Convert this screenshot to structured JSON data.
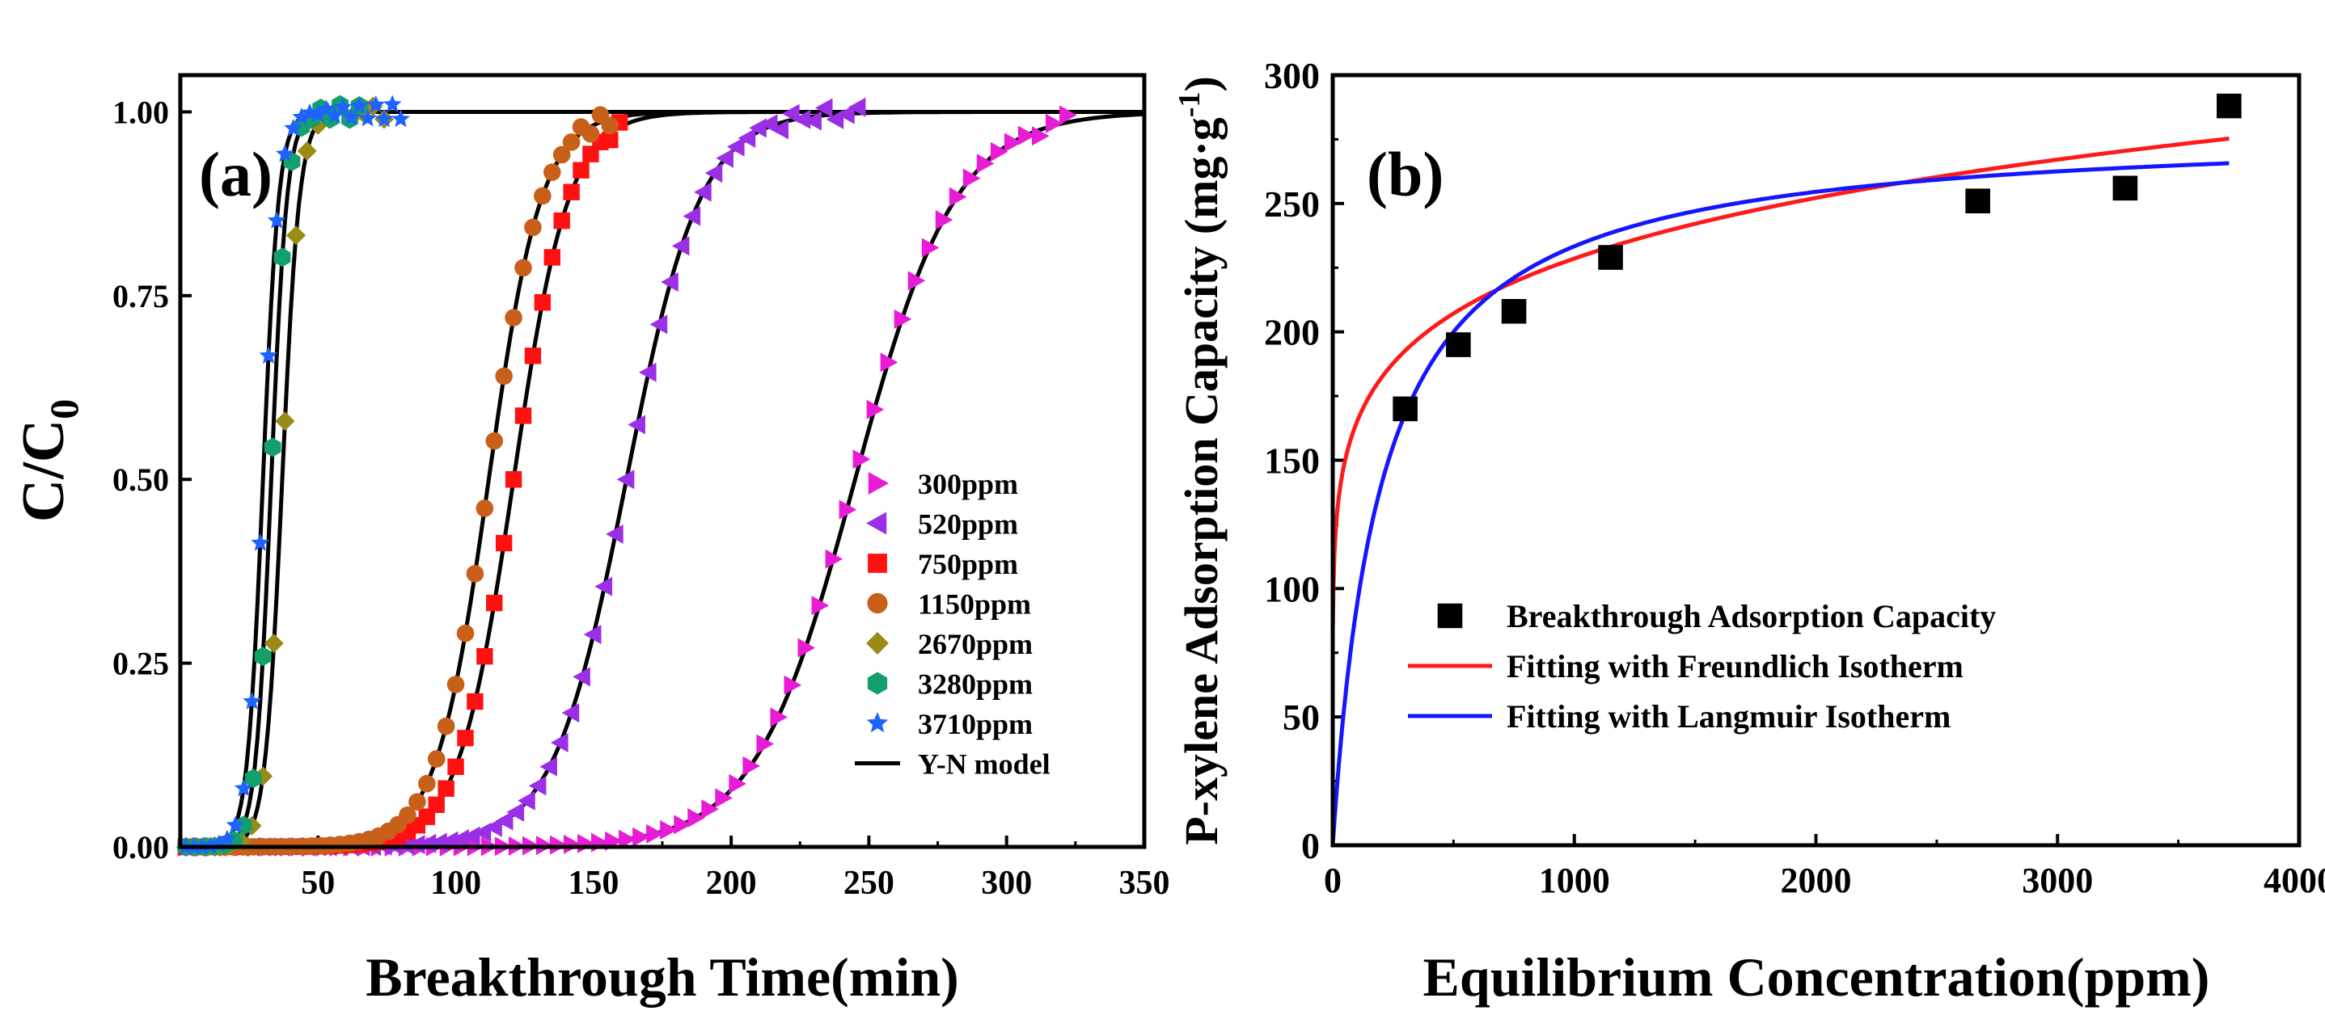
{
  "chart_data": [
    {
      "id": "a",
      "type": "scatter",
      "panel_label": "(a)",
      "xlabel": "Breakthrough Time(min)",
      "ylabel_main": "C/C",
      "ylabel_sub": "0",
      "xlim": [
        0,
        350
      ],
      "ylim": [
        0,
        1.05
      ],
      "xticks": [
        50,
        100,
        150,
        200,
        250,
        300,
        350
      ],
      "xtick_labels": [
        "50",
        "100",
        "150",
        "200",
        "250",
        "300",
        "350"
      ],
      "yticks": [
        0,
        0.25,
        0.5,
        0.75,
        1.0
      ],
      "ytick_labels": [
        "0.00",
        "0.25",
        "0.50",
        "0.75",
        "1.00"
      ],
      "legend_position": "lower-right",
      "series": [
        {
          "name": "300ppm",
          "color": "#e81cd6",
          "marker": "triangle-right",
          "t50": 245,
          "k": 0.055,
          "x_start": 2,
          "x_end": 326,
          "step": 5
        },
        {
          "name": "520ppm",
          "color": "#9a2fe6",
          "marker": "triangle-left",
          "t50": 162,
          "k": 0.075,
          "x_start": 2,
          "x_end": 246,
          "step": 4
        },
        {
          "name": "750ppm",
          "color": "#ff1111",
          "marker": "square",
          "t50": 121,
          "k": 0.1,
          "x_start": 2,
          "x_end": 160,
          "step": 3.5
        },
        {
          "name": "1150ppm",
          "color": "#c8601a",
          "marker": "circle",
          "t50": 112,
          "k": 0.105,
          "x_start": 2,
          "x_end": 156,
          "step": 3.5
        },
        {
          "name": "2670ppm",
          "color": "#9a8a16",
          "marker": "diamond",
          "t50": 37,
          "k": 0.32,
          "x_start": 2,
          "x_end": 76,
          "step": 4
        },
        {
          "name": "3280ppm",
          "color": "#13a06a",
          "marker": "hexagon",
          "t50": 33,
          "k": 0.35,
          "x_start": 2,
          "x_end": 66,
          "step": 3.5
        },
        {
          "name": "3710ppm",
          "color": "#1f63ff",
          "marker": "star",
          "t50": 30,
          "k": 0.35,
          "x_start": 2,
          "x_end": 82,
          "step": 3
        }
      ],
      "fit_legend": "Y-N model",
      "fit_color": "#000000"
    },
    {
      "id": "b",
      "type": "scatter",
      "panel_label": "(b)",
      "xlabel": "Equilibrium Concentration(ppm)",
      "ylabel_main": "P-xylene Adsorption Capacity (mg·g",
      "ylabel_sup": "-1",
      "ylabel_close": ")",
      "xlim": [
        0,
        4000
      ],
      "ylim": [
        0,
        300
      ],
      "xticks": [
        0,
        1000,
        2000,
        3000,
        4000
      ],
      "xtick_labels": [
        "0",
        "1000",
        "2000",
        "3000",
        "4000"
      ],
      "yticks": [
        0,
        50,
        100,
        150,
        200,
        250,
        300
      ],
      "ytick_labels": [
        "0",
        "50",
        "100",
        "150",
        "200",
        "250",
        "300"
      ],
      "legend_position": "lower-right",
      "points": {
        "name": "Breakthrough Adsorption Capacity",
        "color": "#000000",
        "x": [
          300,
          520,
          750,
          1150,
          2670,
          3280,
          3710
        ],
        "y": [
          170,
          195,
          208,
          229,
          251,
          256,
          288
        ]
      },
      "fits": [
        {
          "name": "Fitting with Freundlich Isotherm",
          "color": "#ff1a1a",
          "model": "freundlich",
          "KF": 85.8,
          "n": 7.05
        },
        {
          "name": "Fitting with Langmuir Isotherm",
          "color": "#1515ff",
          "model": "langmuir",
          "qm": 280,
          "KL": 0.005
        }
      ]
    }
  ]
}
